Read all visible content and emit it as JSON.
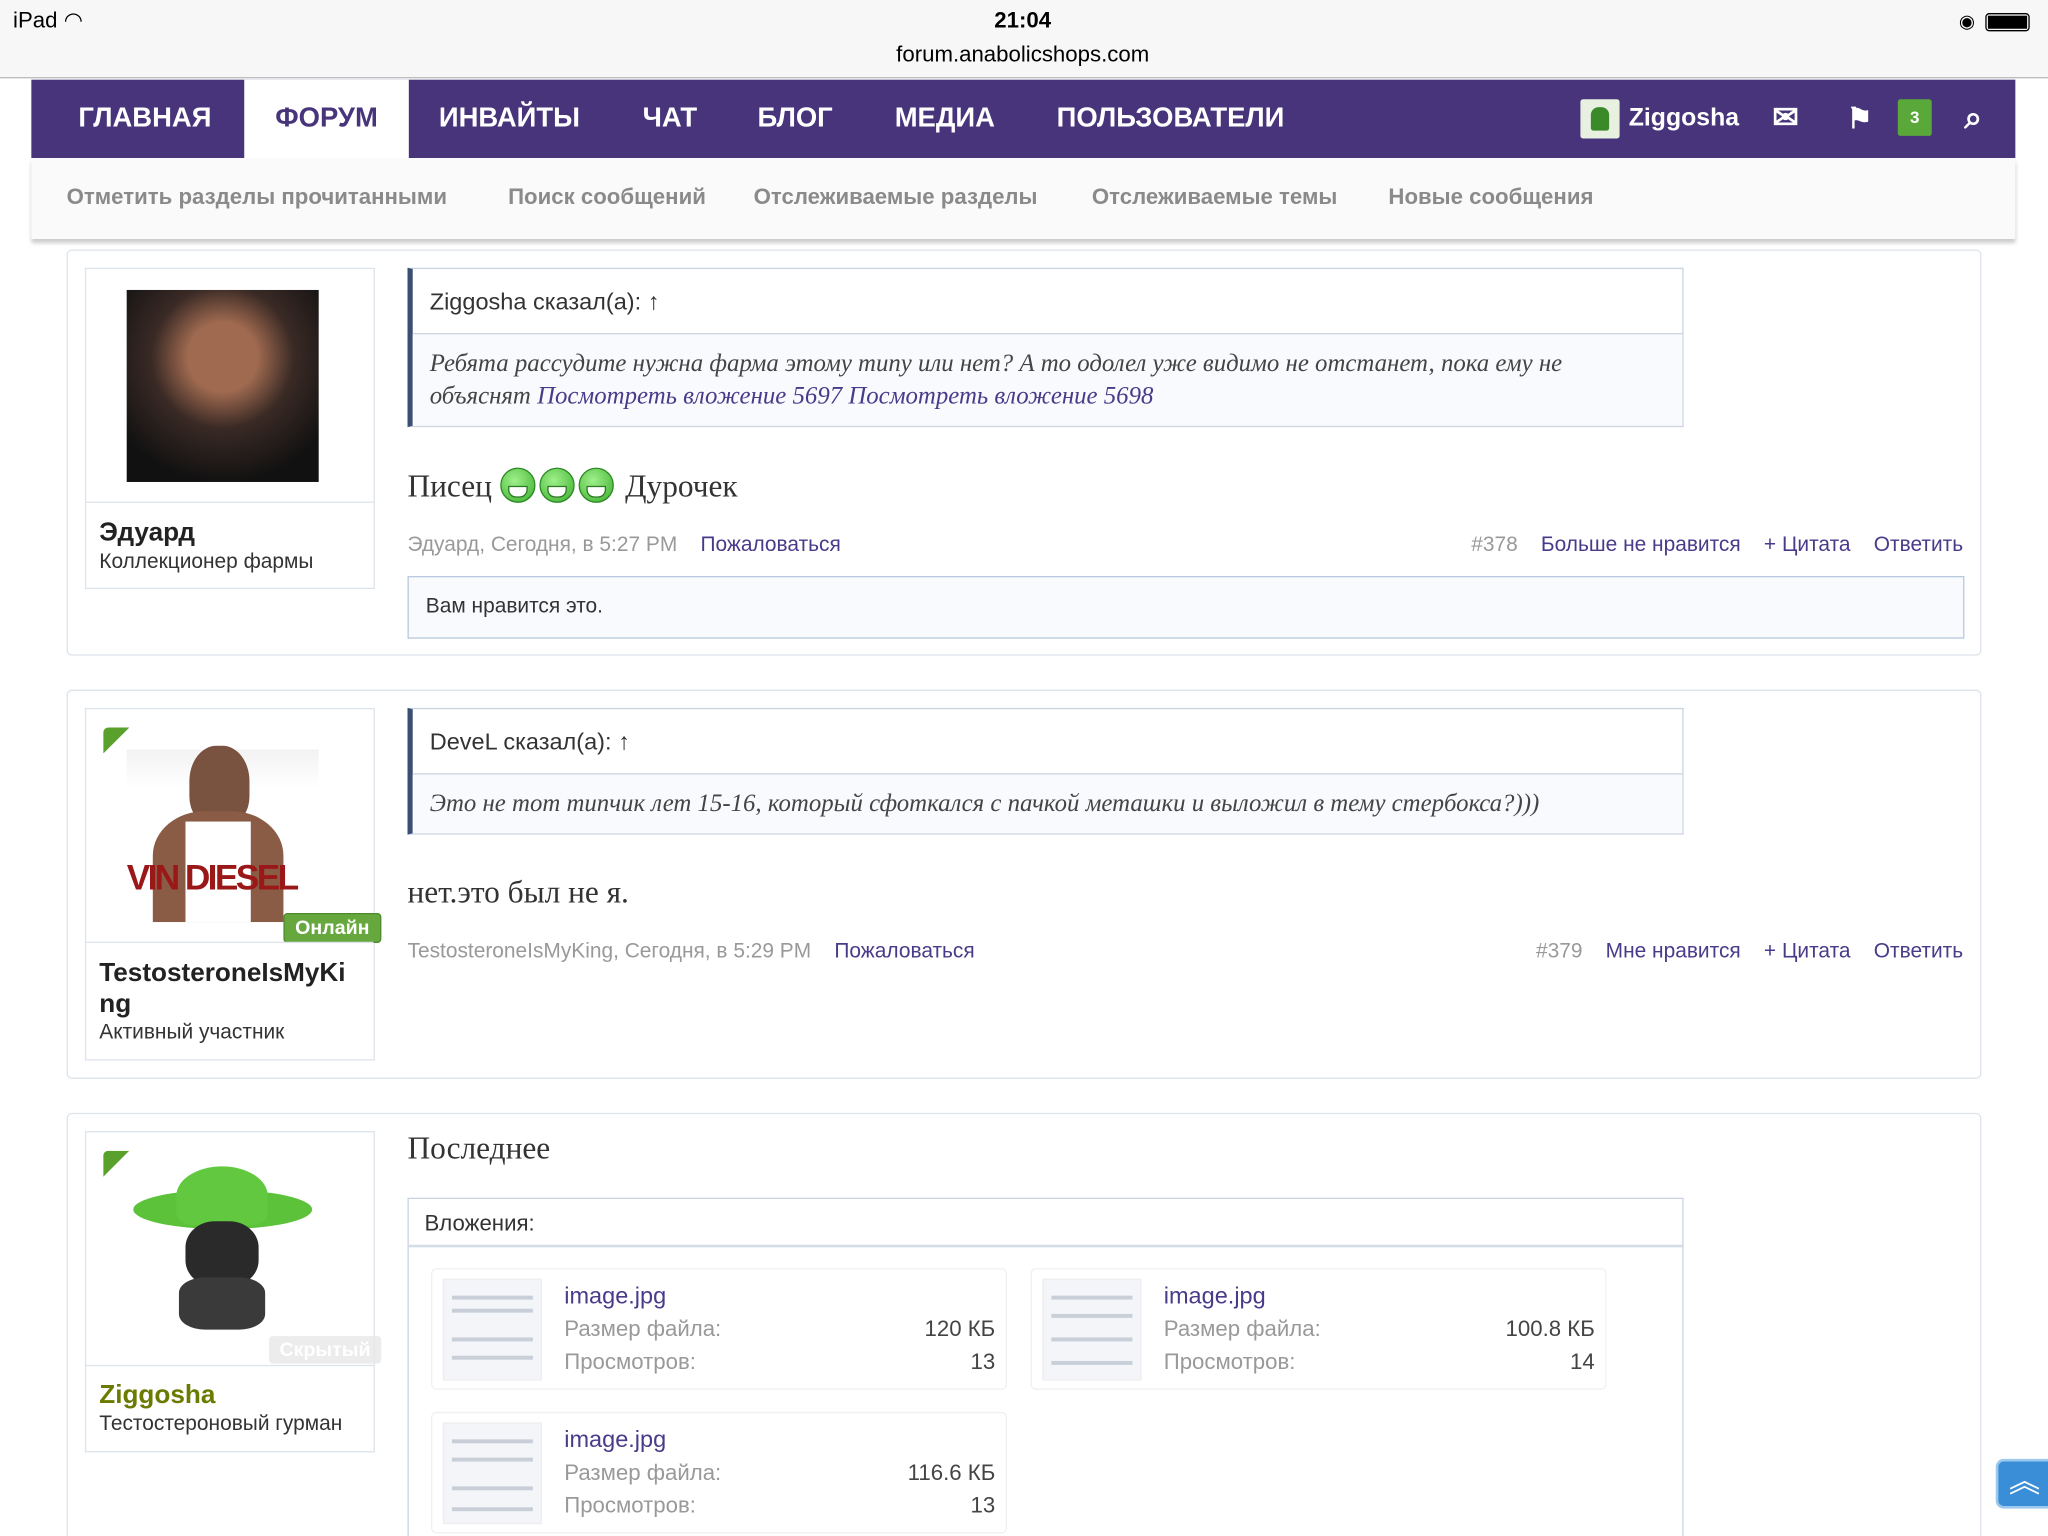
{
  "status_bar": {
    "device": "iPad",
    "time": "21:04",
    "url": "forum.anabolicshops.com"
  },
  "nav": {
    "items": [
      {
        "label": "ГЛАВНАЯ"
      },
      {
        "label": "ФОРУМ",
        "active": true
      },
      {
        "label": "ИНВАЙТЫ"
      },
      {
        "label": "ЧАТ"
      },
      {
        "label": "БЛОГ"
      },
      {
        "label": "МЕДИА"
      },
      {
        "label": "ПОЛЬЗОВАТЕЛИ"
      }
    ],
    "user": "Ziggosha",
    "alerts_count": "3",
    "accent": "#47347a"
  },
  "subnav": [
    "Отметить разделы прочитанными",
    "Поиск сообщений",
    "Отслеживаемые разделы",
    "Отслеживаемые темы",
    "Новые сообщения"
  ],
  "posts": [
    {
      "user": "Эдуард",
      "title": "Коллекционер фармы",
      "quote_header": "Ziggosha сказал(а): ↑",
      "quote_text": "Ребята рассудите нужна фарма этому типу или нет? А то одолел уже видимо не отстанет, пока ему не объяснят ",
      "quote_links": [
        "Посмотреть вложение 5697",
        "Посмотреть вложение 5698"
      ],
      "message_a": "Писец",
      "message_b": "Дурочек",
      "meta": "Эдуард, Сегодня, в 5:27 PM",
      "report": "Пожаловаться",
      "number": "#378",
      "like": "Больше не нравится",
      "quote_btn": "+ Цитата",
      "reply": "Ответить",
      "likes_text": "Вам нравится это."
    },
    {
      "user_line1": "TestosteroneIsMyKi",
      "user_line2": "ng",
      "title": "Активный участник",
      "badge": "Онлайн",
      "quote_header": "DeveL сказал(а): ↑",
      "quote_text": "Это не тот типчик лет 15-16, который сфоткался с пачкой меташки и выложил в тему стербокса?)))",
      "message": "нет.это был не я.",
      "meta": "TestosteroneIsMyKing, Сегодня, в 5:29 PM",
      "report": "Пожаловаться",
      "number": "#379",
      "like": "Мне нравится",
      "quote_btn": "+ Цитата",
      "reply": "Ответить",
      "avatar_text": "VIN DIESEL"
    },
    {
      "user": "Ziggosha",
      "title": "Тестостероновый гурман",
      "badge": "Скрытый",
      "user_color": "#6b7a00",
      "message": "Последнее",
      "attachments_label": "Вложения:",
      "size_label": "Размер файла:",
      "views_label": "Просмотров:",
      "attachments": [
        {
          "name": "image.jpg",
          "size": "120 КБ",
          "views": "13"
        },
        {
          "name": "image.jpg",
          "size": "100.8 КБ",
          "views": "14"
        },
        {
          "name": "image.jpg",
          "size": "116.6 КБ",
          "views": "13"
        }
      ]
    }
  ]
}
